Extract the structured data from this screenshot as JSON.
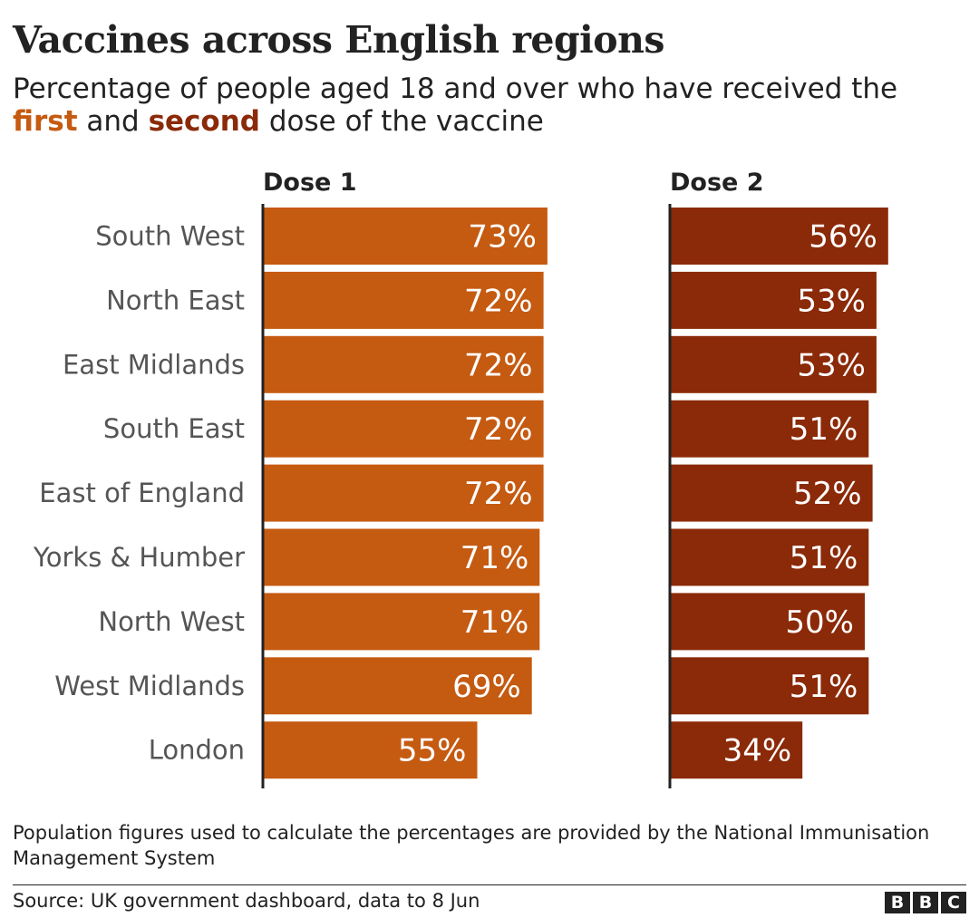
{
  "header": {
    "title": "Vaccines across English regions",
    "subtitle_pre": "Percentage of people aged 18 and over who have received the ",
    "subtitle_first": "first",
    "subtitle_mid": " and ",
    "subtitle_second": "second",
    "subtitle_post": " dose of the vaccine"
  },
  "chart_data": {
    "type": "bar",
    "orientation": "horizontal",
    "categories": [
      "South West",
      "North East",
      "East Midlands",
      "South East",
      "East of England",
      "Yorks & Humber",
      "North West",
      "West Midlands",
      "London"
    ],
    "series": [
      {
        "name": "Dose 1",
        "values": [
          73,
          72,
          72,
          72,
          72,
          71,
          71,
          69,
          55
        ],
        "color": "#c55a11"
      },
      {
        "name": "Dose 2",
        "values": [
          56,
          53,
          53,
          51,
          52,
          51,
          50,
          51,
          34
        ],
        "color": "#8b2a08"
      }
    ],
    "value_suffix": "%",
    "xlim": [
      0,
      100
    ],
    "grid": false
  },
  "footer": {
    "note": "Population figures used to calculate the percentages are provided by the National Immunisation Management System",
    "source": "Source: UK government dashboard, data to 8 Jun",
    "logo_letters": [
      "B",
      "B",
      "C"
    ]
  }
}
